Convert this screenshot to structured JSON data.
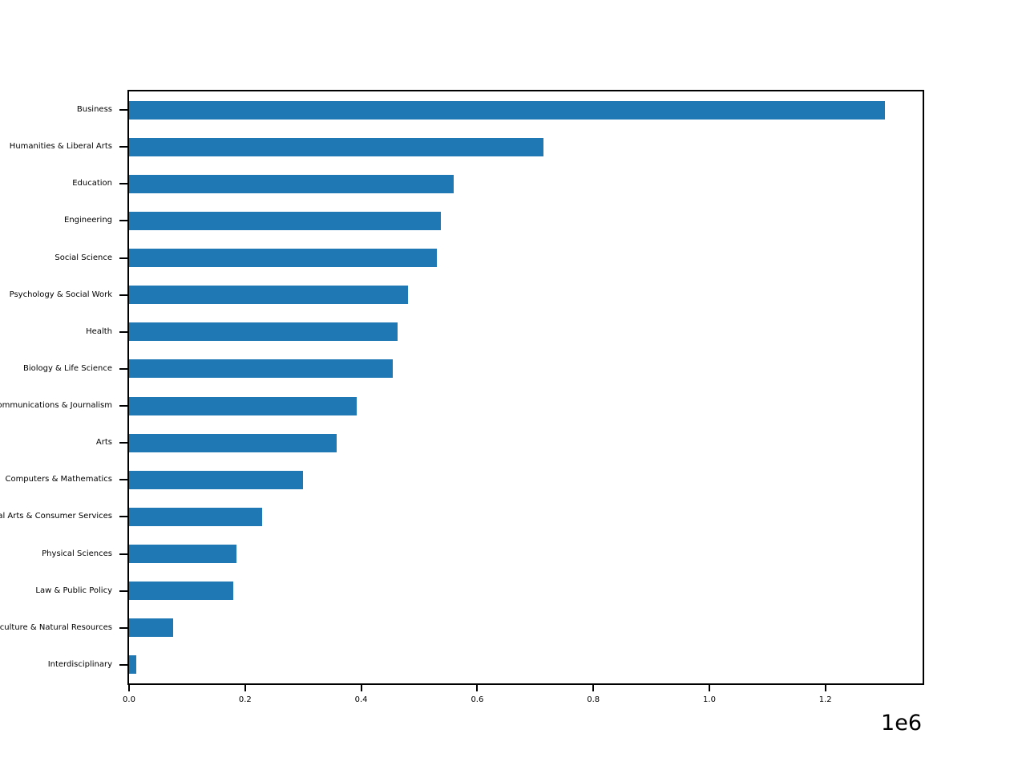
{
  "figure": {
    "background_color": "#ffffff",
    "bar_color": "#1f77b4",
    "spine_color": "#000000",
    "text_color": "#000000",
    "offset_label": "1e6"
  },
  "chart_data": {
    "type": "bar",
    "orientation": "horizontal",
    "title": "",
    "xlabel": "",
    "ylabel": "",
    "grid": false,
    "legend": false,
    "categories": [
      "Business",
      "Humanities & Liberal Arts",
      "Education",
      "Engineering",
      "Social Science",
      "Psychology & Social Work",
      "Health",
      "Biology & Life Science",
      "Communications & Journalism",
      "Arts",
      "Computers & Mathematics",
      "Industrial Arts & Consumer Services",
      "Physical Sciences",
      "Law & Public Policy",
      "Agriculture & Natural Resources",
      "Interdisciplinary"
    ],
    "values": [
      1302376,
      713468,
      559129,
      537583,
      529966,
      481007,
      463230,
      453862,
      392601,
      357130,
      299008,
      229792,
      185479,
      179107,
      75620,
      12296
    ],
    "xlim": [
      0,
      1367495
    ],
    "xticks_1e6": [
      0.0,
      0.2,
      0.4,
      0.6,
      0.8,
      1.0,
      1.2
    ],
    "xtick_labels": [
      "0.0",
      "0.2",
      "0.4",
      "0.6",
      "0.8",
      "1.0",
      "1.2"
    ],
    "x_offset_label": "1e6"
  }
}
